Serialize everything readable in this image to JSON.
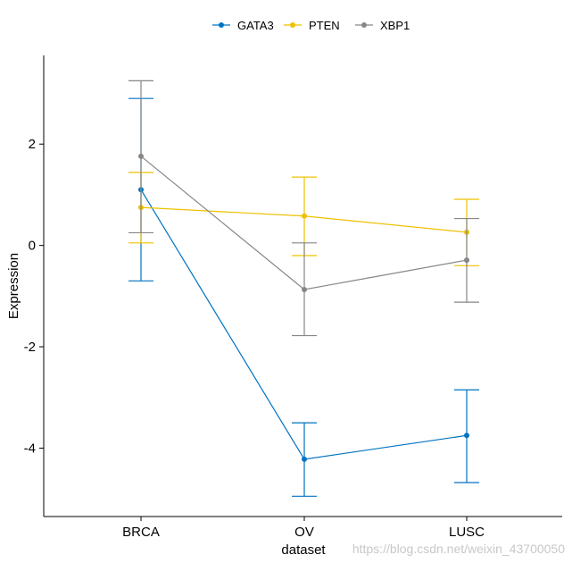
{
  "chart_data": {
    "type": "line",
    "categories": [
      "BRCA",
      "OV",
      "LUSC"
    ],
    "series": [
      {
        "name": "GATA3",
        "color": "#0073C2",
        "values": [
          1.1,
          -4.22,
          -3.75
        ],
        "error_low": [
          -0.7,
          -4.95,
          -4.68
        ],
        "error_high": [
          2.9,
          -3.5,
          -2.85
        ]
      },
      {
        "name": "PTEN",
        "color": "#EFC000",
        "values": [
          0.75,
          0.58,
          0.26
        ],
        "error_low": [
          0.05,
          -0.2,
          -0.4
        ],
        "error_high": [
          1.44,
          1.35,
          0.91
        ]
      },
      {
        "name": "XBP1",
        "color": "#868686",
        "values": [
          1.76,
          -0.87,
          -0.29
        ],
        "error_low": [
          0.25,
          -1.78,
          -1.12
        ],
        "error_high": [
          3.25,
          0.05,
          0.53
        ]
      }
    ],
    "xlabel": "dataset",
    "ylabel": "Expression",
    "yticks": [
      2,
      0,
      -2,
      -4
    ],
    "ylim": [
      -5.35,
      3.75
    ],
    "grid": false,
    "legend_position": "top"
  },
  "watermark": "https://blog.csdn.net/weixin_43700050"
}
